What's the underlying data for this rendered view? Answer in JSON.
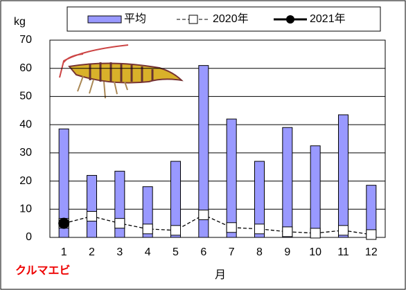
{
  "chart_data": {
    "type": "bar_line",
    "y_label": "kg",
    "x_label": "月",
    "annotation": "クルマエビ",
    "categories": [
      "1",
      "2",
      "3",
      "4",
      "5",
      "6",
      "7",
      "8",
      "9",
      "10",
      "11",
      "12"
    ],
    "series": [
      {
        "name": "平均",
        "type": "bar",
        "color": "#9999ff",
        "values": [
          38.5,
          22,
          23.5,
          18,
          27,
          61,
          42,
          27,
          39,
          32.5,
          43.5,
          18.5
        ]
      },
      {
        "name": "2020年",
        "type": "line",
        "color": "#000000",
        "values": [
          5,
          7.5,
          5,
          3,
          2.5,
          8,
          3.5,
          3,
          2,
          1.5,
          2.5,
          1
        ]
      },
      {
        "name": "2021年",
        "type": "line",
        "color": "#000000",
        "values": [
          5,
          null,
          null,
          null,
          null,
          null,
          null,
          null,
          null,
          null,
          null,
          null
        ]
      }
    ],
    "ylim": [
      0,
      70
    ],
    "yticks": [
      0,
      10,
      20,
      30,
      40,
      50,
      60,
      70
    ],
    "grid": true
  }
}
